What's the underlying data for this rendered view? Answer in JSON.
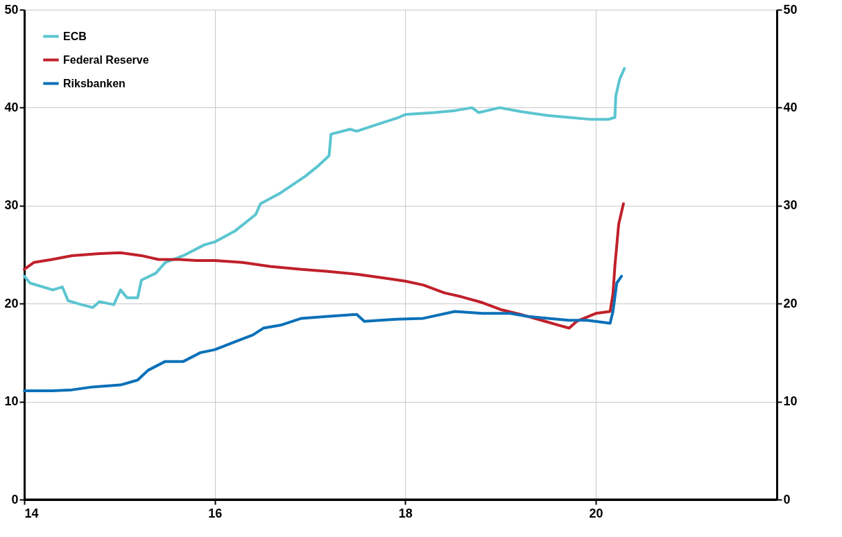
{
  "chart_data": {
    "type": "line",
    "xlim": [
      14,
      21.9
    ],
    "xticks": [
      14,
      16,
      18,
      20
    ],
    "ylim": [
      0,
      50
    ],
    "yticks": [
      0,
      10,
      20,
      30,
      40,
      50
    ],
    "y2lim": [
      0,
      50
    ],
    "y2ticks": [
      0,
      10,
      20,
      30,
      40,
      50
    ],
    "grid": true,
    "legend": "top left",
    "marker": "none",
    "line_style": "solid",
    "series": [
      {
        "name": "ECB",
        "color": "#5bc5d0",
        "x": [
          14.0,
          14.06,
          14.3,
          14.4,
          14.46,
          14.6,
          14.72,
          14.79,
          14.94,
          15.01,
          15.08,
          15.19,
          15.23,
          15.38,
          15.48,
          15.67,
          15.89,
          16.0,
          16.21,
          16.43,
          16.48,
          16.69,
          16.95,
          17.09,
          17.2,
          17.22,
          17.42,
          17.49,
          17.71,
          17.93,
          18.0,
          18.3,
          18.52,
          18.7,
          18.77,
          18.99,
          19.21,
          19.5,
          19.72,
          19.96,
          20.13,
          20.2,
          20.21,
          20.25,
          20.3
        ],
        "values": [
          22.8,
          22.1,
          21.4,
          21.7,
          20.3,
          19.9,
          19.6,
          20.2,
          19.9,
          21.4,
          20.6,
          20.6,
          22.4,
          23.1,
          24.2,
          24.9,
          26.0,
          26.3,
          27.4,
          29.1,
          30.2,
          31.3,
          33.0,
          34.1,
          35.1,
          37.3,
          37.8,
          37.6,
          38.3,
          39.0,
          39.3,
          39.5,
          39.7,
          40.0,
          39.5,
          40.0,
          39.6,
          39.2,
          39.0,
          38.8,
          38.8,
          39.0,
          41.2,
          42.9,
          44.0
        ]
      },
      {
        "name": "Federal Reserve",
        "color": "#c0202a",
        "x": [
          14.0,
          14.1,
          14.29,
          14.5,
          14.79,
          15.01,
          15.23,
          15.41,
          15.63,
          15.81,
          16.0,
          16.29,
          16.58,
          16.91,
          17.17,
          17.49,
          17.79,
          18.0,
          18.19,
          18.41,
          18.59,
          18.81,
          19.0,
          19.21,
          19.43,
          19.61,
          19.72,
          19.8,
          20.0,
          20.15,
          20.18,
          20.2,
          20.24,
          20.29
        ],
        "values": [
          23.5,
          24.2,
          24.5,
          24.9,
          25.1,
          25.2,
          24.9,
          24.5,
          24.5,
          24.4,
          24.4,
          24.2,
          23.8,
          23.5,
          23.3,
          23.0,
          22.6,
          22.3,
          21.9,
          21.1,
          20.7,
          20.1,
          19.4,
          18.9,
          18.3,
          17.8,
          17.5,
          18.2,
          19.0,
          19.2,
          21.0,
          23.8,
          28.1,
          30.2
        ]
      },
      {
        "name": "Riksbanken",
        "color": "#0a70b8",
        "x": [
          14.0,
          14.29,
          14.5,
          14.72,
          15.01,
          15.19,
          15.3,
          15.48,
          15.67,
          15.85,
          16.0,
          16.21,
          16.4,
          16.51,
          16.69,
          16.91,
          17.2,
          17.49,
          17.57,
          17.9,
          18.19,
          18.52,
          18.81,
          19.1,
          19.28,
          19.5,
          19.72,
          19.91,
          20.15,
          20.18,
          20.22,
          20.27
        ],
        "values": [
          11.1,
          11.1,
          11.2,
          11.5,
          11.7,
          12.2,
          13.2,
          14.1,
          14.1,
          15.0,
          15.3,
          16.1,
          16.8,
          17.5,
          17.8,
          18.5,
          18.7,
          18.9,
          18.2,
          18.4,
          18.5,
          19.2,
          19.0,
          19.0,
          18.7,
          18.5,
          18.3,
          18.3,
          18.0,
          19.2,
          22.1,
          22.8
        ]
      }
    ]
  }
}
